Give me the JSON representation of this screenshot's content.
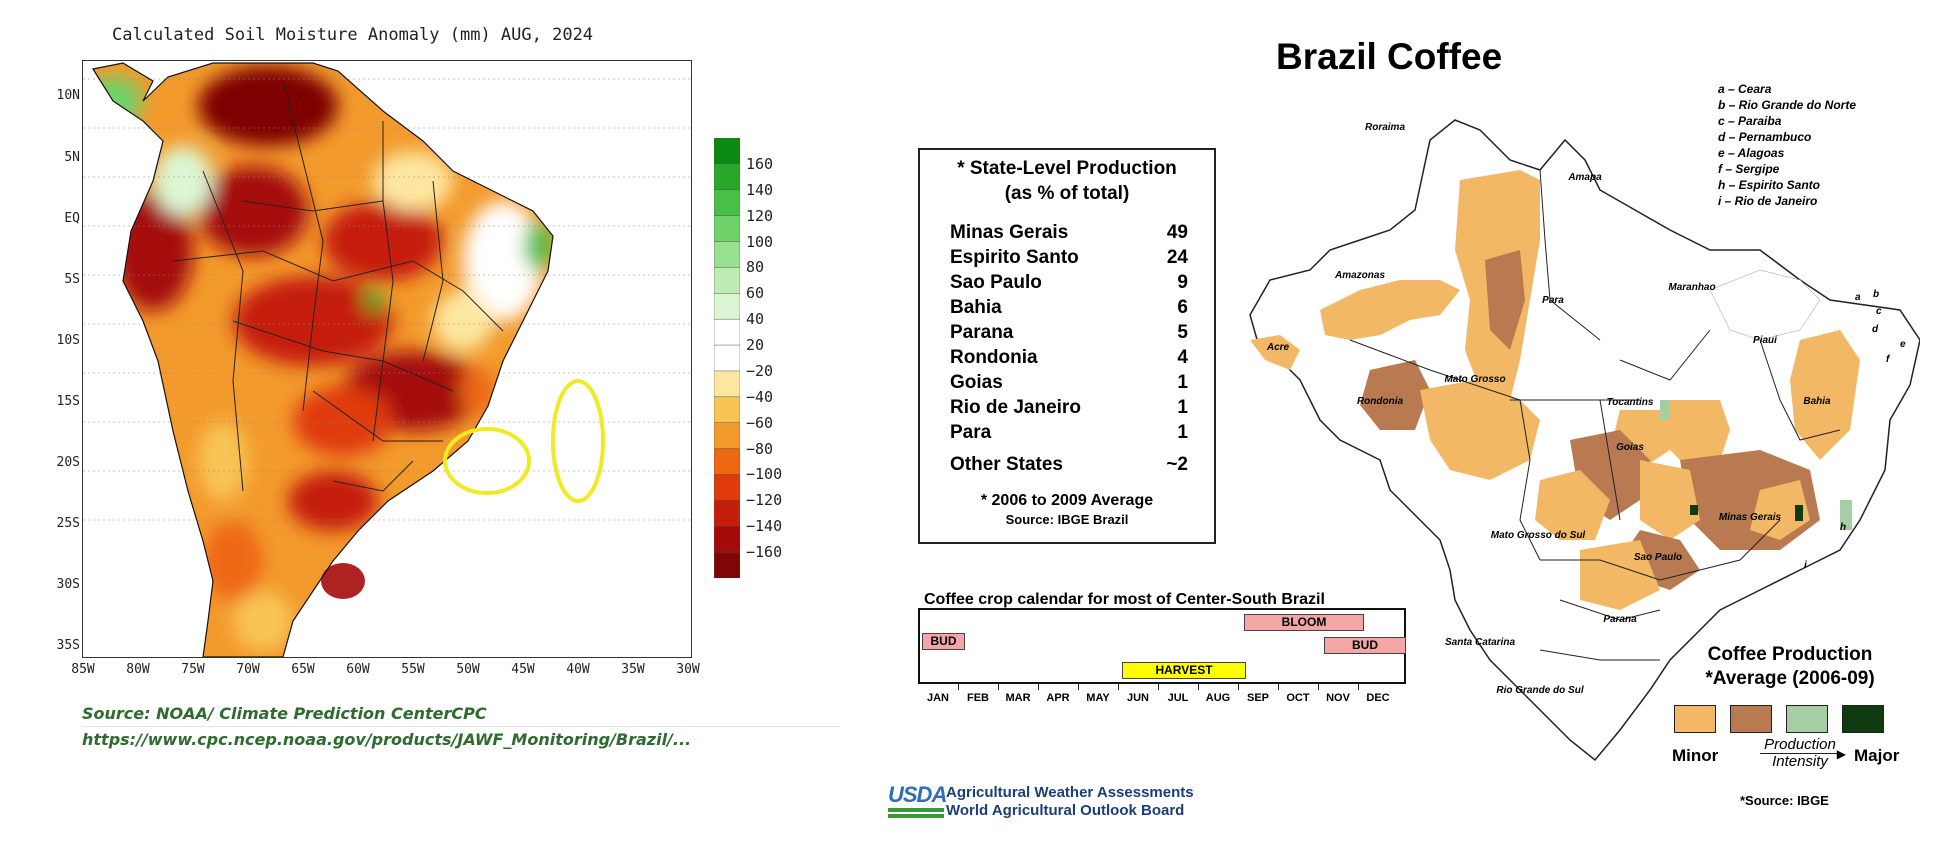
{
  "soil_map": {
    "title": "Calculated Soil Moisture Anomaly (mm) AUG, 2024",
    "lat_labels": [
      "10N",
      "5N",
      "EQ",
      "5S",
      "10S",
      "15S",
      "20S",
      "25S",
      "30S",
      "35S"
    ],
    "lon_labels": [
      "85W",
      "80W",
      "75W",
      "70W",
      "65W",
      "60W",
      "55W",
      "50W",
      "45W",
      "40W",
      "35W",
      "30W"
    ],
    "colorbar": {
      "labels": [
        "160",
        "140",
        "120",
        "100",
        "80",
        "60",
        "40",
        "20",
        "−20",
        "−40",
        "−60",
        "−80",
        "−100",
        "−120",
        "−140",
        "−160"
      ],
      "colors": [
        "#0a8a12",
        "#2aa82a",
        "#48c046",
        "#6fd26a",
        "#97e090",
        "#bdedb3",
        "#dcf6d3",
        "#ffffff",
        "#ffffff",
        "#fde7a0",
        "#f8c555",
        "#f39a2c",
        "#ee6812",
        "#e03a0b",
        "#c51e0a",
        "#a50a0a",
        "#7e0606"
      ]
    },
    "highlight_color": "#f0ea20",
    "source_line1": "Source: NOAA/ Climate Prediction CenterCPC",
    "source_line2": "https://www.cpc.ncep.noaa.gov/products/JAWF_Monitoring/Brazil/..."
  },
  "coffee": {
    "title": "Brazil Coffee",
    "production_box": {
      "heading1": "* State-Level Production",
      "heading2": "(as % of total)",
      "states": [
        {
          "name": "Minas Gerais",
          "value": "49"
        },
        {
          "name": "Espirito Santo",
          "value": "24"
        },
        {
          "name": "Sao Paulo",
          "value": "9"
        },
        {
          "name": "Bahia",
          "value": "6"
        },
        {
          "name": "Parana",
          "value": "5"
        },
        {
          "name": "Rondonia",
          "value": "4"
        },
        {
          "name": "Goias",
          "value": "1"
        },
        {
          "name": "Rio de Janeiro",
          "value": "1"
        },
        {
          "name": "Para",
          "value": "1"
        }
      ],
      "other_name": "Other States",
      "other_value": "~2",
      "note": "* 2006 to 2009 Average",
      "source": "Source: IBGE Brazil"
    },
    "calendar": {
      "title": "Coffee crop calendar for most of Center-South Brazil",
      "months": [
        "JAN",
        "FEB",
        "MAR",
        "APR",
        "MAY",
        "JUN",
        "JUL",
        "AUG",
        "SEP",
        "OCT",
        "NOV",
        "DEC"
      ],
      "bud_label": "BUD",
      "bloom_label": "BLOOM",
      "harvest_label": "HARVEST",
      "bloom_color": "#f4a6a6",
      "harvest_color": "#ffff00"
    },
    "abbreviations": [
      "a – Ceara",
      "b – Rio Grande do Norte",
      "c – Paraiba",
      "d – Pernambuco",
      "e – Alagoas",
      "f – Sergipe",
      "h – Espirito Santo",
      "i – Rio de Janeiro"
    ],
    "map_labels": {
      "roraima": "Roraima",
      "amapa": "Amapa",
      "amazonas": "Amazonas",
      "para": "Para",
      "maranhao": "Maranhao",
      "piaui": "Piaui",
      "acre": "Acre",
      "rondonia": "Rondonia",
      "mato_grosso": "Mato Grosso",
      "tocantins": "Tocantins",
      "bahia": "Bahia",
      "goias": "Goias",
      "minas_gerais": "Minas Gerais",
      "mato_grosso_do_sul": "Mato Grosso do Sul",
      "sao_paulo": "Sao Paulo",
      "parana": "Parana",
      "santa_catarina": "Santa Catarina",
      "rio_grande_do_sul": "Rio Grande do Sul",
      "a": "a",
      "b": "b",
      "c": "c",
      "d": "d",
      "e": "e",
      "f": "f",
      "h": "h",
      "i": "i"
    },
    "legend": {
      "title_line1": "Coffee Production",
      "title_line2": "*Average (2006-09)",
      "colors": [
        "#f2b865",
        "#b97a52",
        "#a7cda2",
        "#0f3b10"
      ],
      "minor": "Minor",
      "major": "Major",
      "intensity_line1": "Production",
      "intensity_line2": "Intensity",
      "source": "*Source: IBGE"
    }
  },
  "usda": {
    "logo": "USDA",
    "line1": "Agricultural Weather Assessments",
    "line2": "World Agricultural Outlook Board"
  }
}
